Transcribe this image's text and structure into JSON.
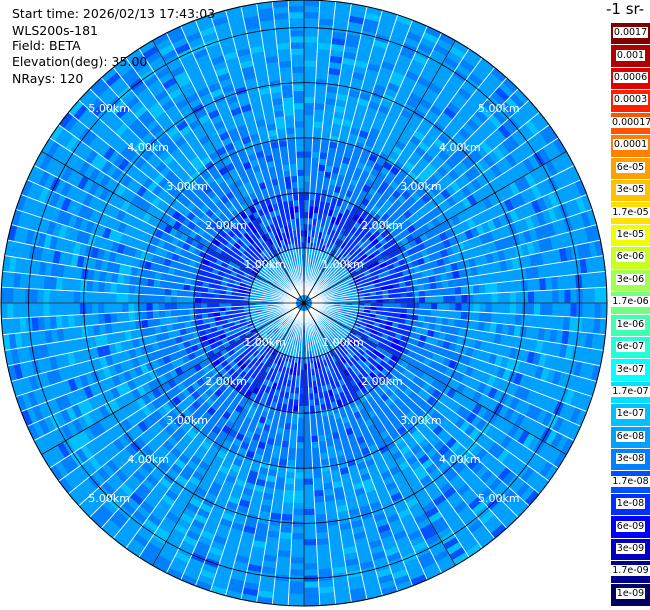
{
  "info": {
    "start_time": "Start time: 2026/02/13 17:43:03",
    "instrument": "WLS200s-181",
    "field": "Field: BETA",
    "elevation": "Elevation(deg): 35.00",
    "nrays": "NRays: 120"
  },
  "colorbar": {
    "units_label": "-1 sr-",
    "levels": [
      {
        "label": "0.0017",
        "color": "#800000"
      },
      {
        "label": "0.001",
        "color": "#b00000"
      },
      {
        "label": "0.0006",
        "color": "#e00000"
      },
      {
        "label": "0.0003",
        "color": "#ff2000"
      },
      {
        "label": "0.00017",
        "color": "#ff5500"
      },
      {
        "label": "0.0001",
        "color": "#ff8000"
      },
      {
        "label": "6e-05",
        "color": "#ffa000"
      },
      {
        "label": "3e-05",
        "color": "#ffc000"
      },
      {
        "label": "1.7e-05",
        "color": "#ffe000"
      },
      {
        "label": "1e-05",
        "color": "#f0ff00"
      },
      {
        "label": "6e-06",
        "color": "#c8ff20"
      },
      {
        "label": "3e-06",
        "color": "#a0ff50"
      },
      {
        "label": "1.7e-06",
        "color": "#70ff80"
      },
      {
        "label": "1e-06",
        "color": "#40ffb0"
      },
      {
        "label": "6e-07",
        "color": "#20ffd8"
      },
      {
        "label": "3e-07",
        "color": "#00ffff"
      },
      {
        "label": "1.7e-07",
        "color": "#00e0ff"
      },
      {
        "label": "1e-07",
        "color": "#00c0ff"
      },
      {
        "label": "6e-08",
        "color": "#00a0ff"
      },
      {
        "label": "3e-08",
        "color": "#0080ff"
      },
      {
        "label": "1.7e-08",
        "color": "#0050ff"
      },
      {
        "label": "1e-08",
        "color": "#0030ff"
      },
      {
        "label": "6e-09",
        "color": "#0000ff"
      },
      {
        "label": "3e-09",
        "color": "#0000c0"
      },
      {
        "label": "1.7e-09",
        "color": "#000090"
      },
      {
        "label": "1e-09",
        "color": "#000060"
      }
    ]
  },
  "chart_data": {
    "type": "heatmap",
    "projection": "polar-ppi",
    "field": "BETA",
    "elevation_deg": 35.0,
    "n_rays": 120,
    "max_range_km": 5.5,
    "range_ring_labels": [
      "1.00km",
      "2.00km",
      "3.00km",
      "4.00km",
      "5.00km"
    ],
    "range_rings_km": [
      1,
      2,
      3,
      4,
      5
    ],
    "azimuth_spokes_deg": [
      0,
      30,
      60,
      90,
      120,
      150,
      180,
      210,
      240,
      270,
      300,
      330
    ],
    "dominant_level_by_range": [
      {
        "range_km": [
          0.0,
          1.0
        ],
        "level": "6e-08"
      },
      {
        "range_km": [
          1.0,
          2.0
        ],
        "level": "1e-08"
      },
      {
        "range_km": [
          2.0,
          3.0
        ],
        "level": "3e-08"
      },
      {
        "range_km": [
          3.0,
          5.5
        ],
        "level": "6e-08"
      }
    ]
  }
}
